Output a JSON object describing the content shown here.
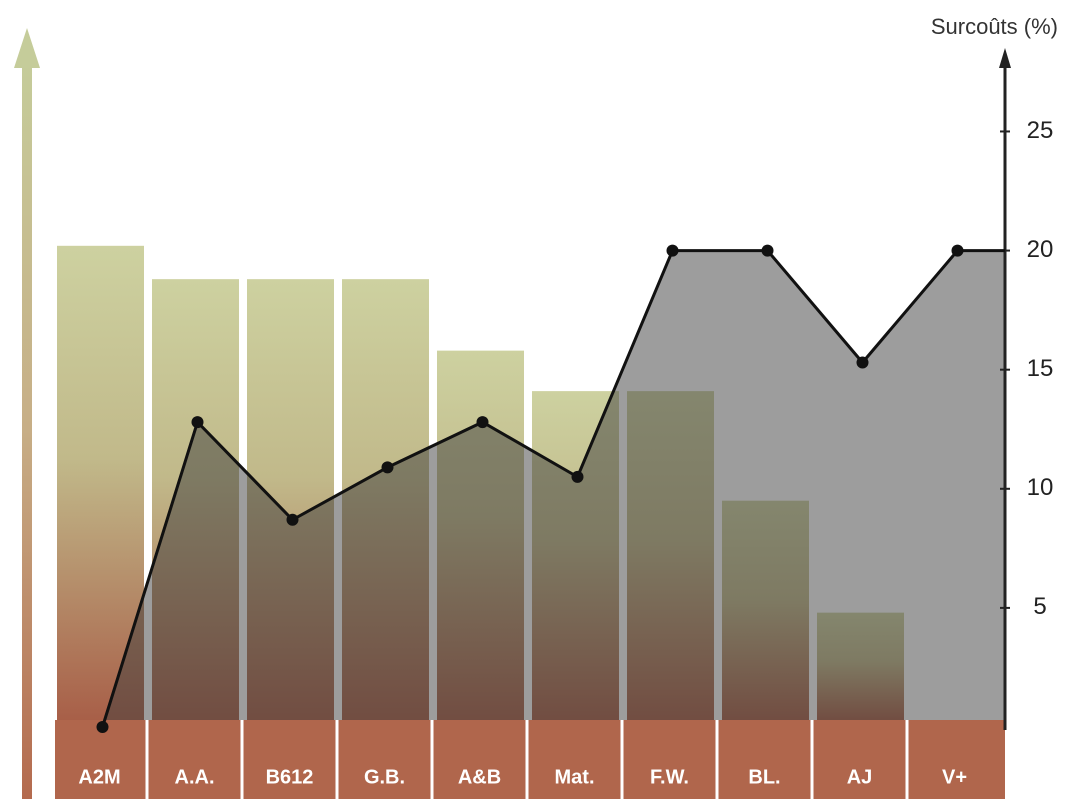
{
  "chart_data": {
    "type": "bar",
    "y_label": "Surcoûts (%)",
    "categories": [
      "A2M",
      "A.A.",
      "B612",
      "G.B.",
      "A&B",
      "Mat.",
      "F.W.",
      "BL.",
      "AJ",
      "V+"
    ],
    "series": [
      {
        "type": "bar",
        "color": "#c9cd9c",
        "values": [
          20.2,
          18.8,
          18.8,
          18.8,
          15.8,
          14.1,
          14.1,
          9.5,
          4.8,
          null
        ]
      },
      {
        "type": "area",
        "color": "#3c3c3c",
        "values": [
          0,
          12.8,
          8.7,
          10.9,
          12.8,
          10.5,
          20,
          20,
          15.3,
          20
        ]
      }
    ],
    "ylim": [
      0,
      28
    ],
    "yticks": [
      5,
      10,
      15,
      20,
      25
    ]
  }
}
